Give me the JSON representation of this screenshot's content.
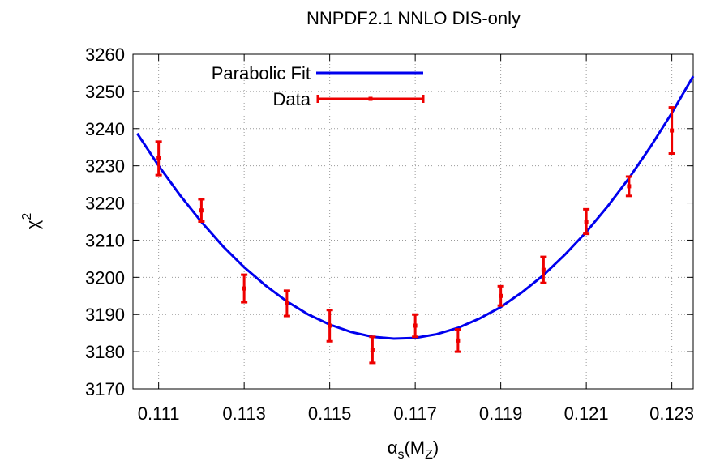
{
  "chart_data": {
    "type": "line",
    "title": "NNPDF2.1 NNLO DIS-only",
    "xlabel": [
      "α",
      "s",
      "(M",
      "Z",
      ")"
    ],
    "ylabel": [
      "χ",
      "2"
    ],
    "xlim": [
      0.1104,
      0.1235
    ],
    "ylim": [
      3170,
      3260
    ],
    "xticks": [
      0.111,
      0.113,
      0.115,
      0.117,
      0.119,
      0.121,
      0.123
    ],
    "yticks": [
      3170,
      3180,
      3190,
      3200,
      3210,
      3220,
      3230,
      3240,
      3250,
      3260
    ],
    "grid": true,
    "legend": "top-left",
    "series": [
      {
        "name": "Parabolic Fit",
        "color": "#0000ee",
        "kind": "line",
        "x": [
          0.1105,
          0.111,
          0.1115,
          0.112,
          0.1125,
          0.113,
          0.1135,
          0.114,
          0.1145,
          0.115,
          0.1155,
          0.116,
          0.1165,
          0.117,
          0.1175,
          0.118,
          0.1185,
          0.119,
          0.1195,
          0.12,
          0.1205,
          0.121,
          0.1215,
          0.122,
          0.1225,
          0.123,
          0.1235
        ],
        "values": [
          3238.7,
          3230.0,
          3222.1,
          3214.9,
          3208.4,
          3202.7,
          3197.8,
          3193.5,
          3190.0,
          3187.3,
          3185.3,
          3184.0,
          3183.5,
          3183.7,
          3184.7,
          3186.4,
          3188.9,
          3192.0,
          3196.0,
          3200.6,
          3206.1,
          3212.2,
          3219.1,
          3226.7,
          3235.1,
          3244.2,
          3254.1
        ]
      },
      {
        "name": "Data",
        "color": "#ee0000",
        "kind": "errorbar",
        "x": [
          0.111,
          0.112,
          0.113,
          0.114,
          0.115,
          0.116,
          0.117,
          0.118,
          0.119,
          0.12,
          0.121,
          0.122,
          0.123
        ],
        "values": [
          3232,
          3218,
          3197,
          3193,
          3187,
          3180.5,
          3187,
          3183,
          3195,
          3202,
          3215,
          3224.5,
          3239.5
        ],
        "errors": [
          4.5,
          3,
          3.7,
          3.4,
          4.2,
          3.5,
          3,
          3,
          2.6,
          3.5,
          3.3,
          2.6,
          6.2
        ]
      }
    ]
  }
}
